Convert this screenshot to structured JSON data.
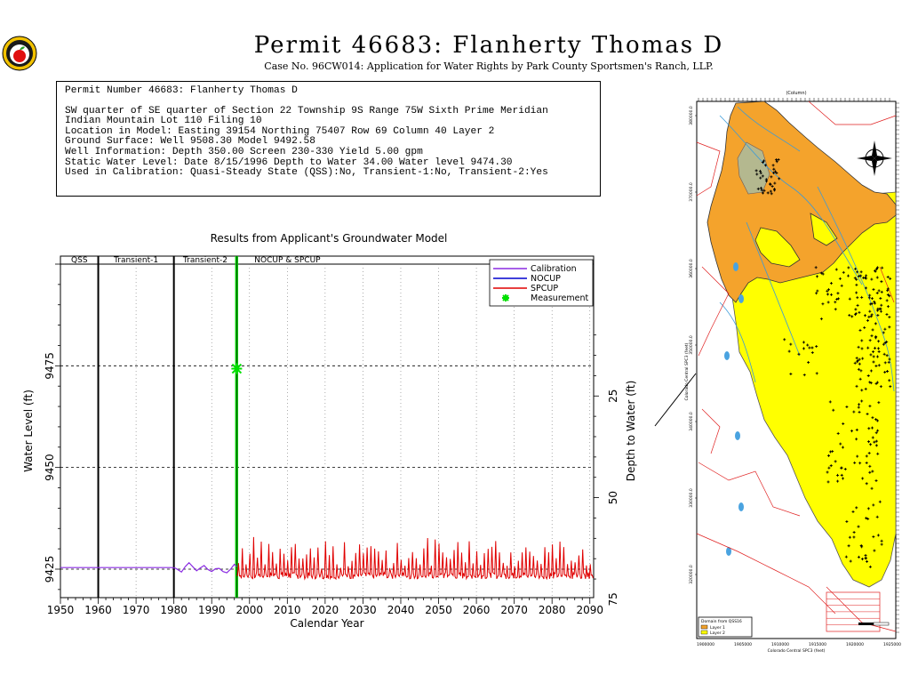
{
  "header": {
    "title": "Permit 46683:  Flanherty Thomas D",
    "subtitle": "Case No. 96CW014: Application for Water Rights by Park County Sportsmen's Ranch, LLP."
  },
  "logo": {
    "icon": "apple-seal-icon"
  },
  "info_box": {
    "lines": [
      "Permit Number 46683: Flanherty Thomas D",
      "SW quarter of SE quarter of Section 22 Township 9S Range 75W Sixth Prime Meridian",
      "Indian Mountain Lot 110 Filing 10",
      "Location in Model: Easting 39154 Northing  75407 Row   69 Column 40 Layer 2",
      "Ground Surface: Well   9508.30 Model   9492.58",
      "Well Information: Depth    350.00 Screen 230-330 Yield      5.00 gpm",
      "Static Water Level: Date   8/15/1996 Depth to Water     34.00 Water level  9474.30",
      "Used in Calibration: Quasi-Steady State (QSS):No, Transient-1:No, Transient-2:Yes"
    ]
  },
  "chart_data": {
    "type": "line",
    "title": "Results from Applicant's Groundwater Model",
    "xlabel": "Calendar Year",
    "ylabel": "Water Level (ft)",
    "y2label": "Depth to Water (ft)",
    "xlim": [
      1950,
      2091
    ],
    "ylim": [
      9418,
      9500
    ],
    "x_ticks": [
      1950,
      1960,
      1970,
      1980,
      1990,
      2000,
      2010,
      2020,
      2030,
      2040,
      2050,
      2060,
      2070,
      2080,
      2090
    ],
    "y_ticks": [
      9425,
      9450,
      9475
    ],
    "y2_ticks": [
      25,
      50,
      75
    ],
    "ground_surface_model": 9492.58,
    "grid": true,
    "legend_position": "top-right",
    "periods": [
      {
        "label": "QSS",
        "start": 1950,
        "end": 1960
      },
      {
        "label": "Transient-1",
        "start": 1960,
        "end": 1980
      },
      {
        "label": "Transient-2",
        "start": 1980,
        "end": 1996.6
      },
      {
        "label": "NOCUP  &  SPCUP",
        "start": 1996.6,
        "end": 2091
      }
    ],
    "period_boundaries": [
      1960,
      1980
    ],
    "green_band": [
      1996.2,
      1997.0
    ],
    "series": [
      {
        "name": "Calibration",
        "color": "#8a2be2",
        "x": [
          1950,
          1960,
          1970,
          1979.5,
          1980.5,
          1982,
          1983,
          1984,
          1985,
          1986,
          1987,
          1988,
          1989,
          1990,
          1991,
          1992,
          1993,
          1994,
          1995,
          1996,
          1996.6
        ],
        "y": [
          9425.4,
          9425.4,
          9425.4,
          9425.4,
          9425.2,
          9424.3,
          9425.6,
          9426.6,
          9425.6,
          9424.6,
          9425.3,
          9425.9,
          9424.9,
          9424.4,
          9425.1,
          9425.2,
          9424.4,
          9424.1,
          9425.0,
          9426.2,
          9425.6
        ]
      },
      {
        "name": "NOCUP",
        "color": "#0000cd",
        "x": [],
        "y": []
      },
      {
        "name": "SPCUP",
        "color": "#e00000"
      },
      {
        "name": "Measurement",
        "color": "#00e000",
        "x": [
          1996.62
        ],
        "y": [
          9474.3
        ],
        "marker": "star"
      }
    ]
  },
  "map": {
    "top_axis_label": "(Column)",
    "left_axis_label": "Colorado Central SPC3 (feet)",
    "bottom_axis_label": "Colorado Central SPC3 (feet)",
    "y_ticks": [
      "380000.0",
      "370000.0",
      "360000.0",
      "350000.0",
      "340000.0",
      "330000.0",
      "320000.0"
    ],
    "x_ticks": [
      "1900000",
      "1905000",
      "1910000",
      "1915000",
      "1920000",
      "1925000"
    ],
    "legend": {
      "title": "Domain from QSS16",
      "items": [
        "Layer 1",
        "Layer 2"
      ]
    },
    "colors": {
      "layer1": "#f4a32c",
      "layer2": "#ffff00"
    }
  }
}
